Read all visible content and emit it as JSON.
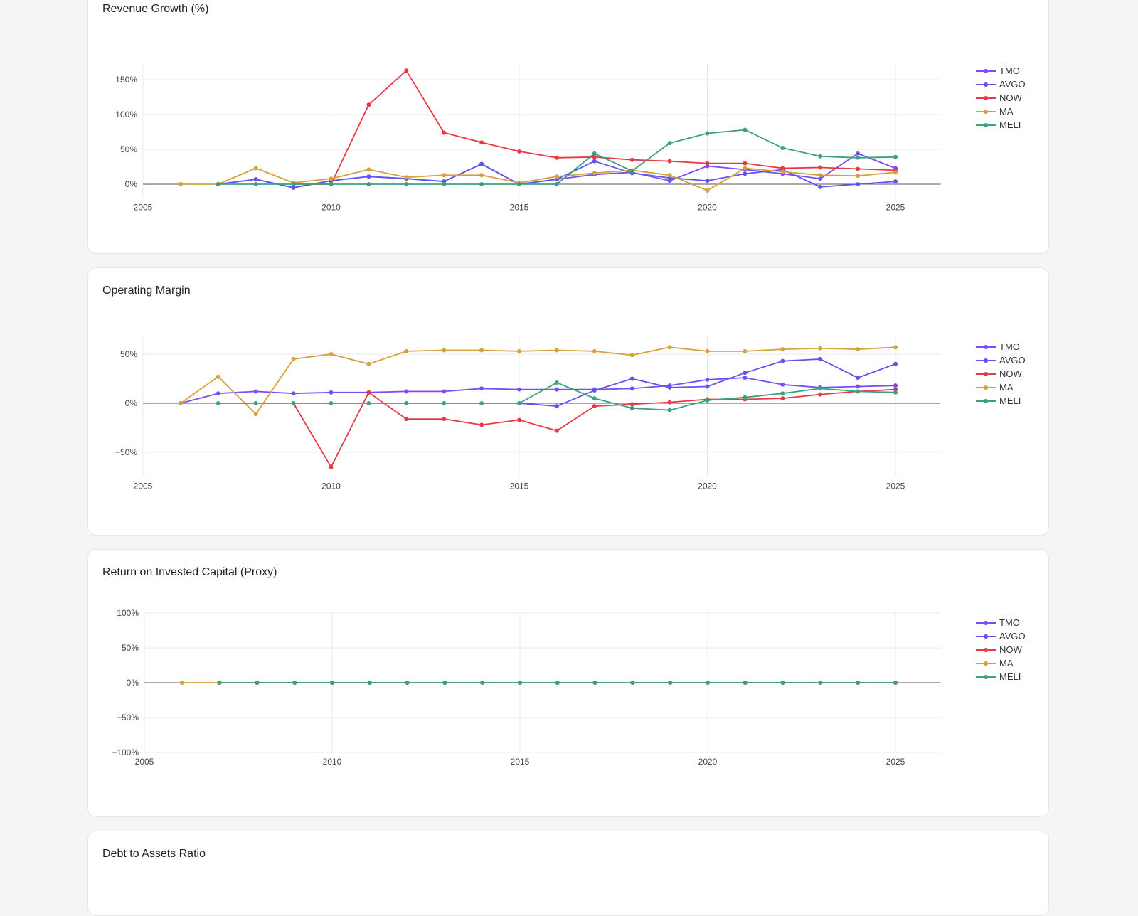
{
  "colors": {
    "TMO": "#7a4cf5",
    "AVGO": "#6352f0",
    "NOW": "#e63946",
    "MA": "#d4a23a",
    "MELI": "#3aa17e",
    "zero_line": "#555555",
    "grid": "#e8e8e8"
  },
  "chart_data": [
    {
      "type": "line",
      "title": "Revenue Growth (%)",
      "xlabel": "",
      "ylabel": "",
      "xlim": [
        2005,
        2026.2
      ],
      "ylim": [
        -20,
        175
      ],
      "xticks": [
        2005,
        2010,
        2015,
        2020,
        2025
      ],
      "xtick_labels": [
        "2005",
        "2010",
        "2015",
        "2020",
        "2025"
      ],
      "yticks": [
        0,
        50,
        100,
        150
      ],
      "ytick_labels": [
        "0%",
        "50%",
        "100%",
        "150%"
      ],
      "grid": true,
      "legend": "right",
      "series": [
        {
          "name": "TMO",
          "x": [
            2007,
            2008,
            2009,
            2010,
            2011,
            2012,
            2013,
            2014,
            2015,
            2016,
            2017,
            2018,
            2019,
            2020,
            2021,
            2022,
            2023,
            2024,
            2025
          ],
          "values": [
            0,
            7,
            -5,
            5,
            11,
            8,
            4,
            29,
            0,
            7,
            14,
            17,
            5,
            26,
            21,
            15,
            8,
            44,
            23
          ]
        },
        {
          "name": "AVGO",
          "x": [
            2007,
            2008,
            2009,
            2010,
            2011,
            2012,
            2013,
            2014,
            2015,
            2016,
            2017,
            2018,
            2019,
            2020,
            2021,
            2022,
            2023,
            2024,
            2025
          ],
          "values": [
            0,
            7,
            -5,
            5,
            11,
            8,
            4,
            29,
            0,
            7,
            33,
            16,
            9,
            5,
            15,
            21,
            -4,
            0,
            4
          ]
        },
        {
          "name": "NOW",
          "x": [
            2009,
            2010,
            2011,
            2012,
            2013,
            2014,
            2015,
            2016,
            2017,
            2018,
            2019,
            2020,
            2021,
            2022,
            2023,
            2024,
            2025
          ],
          "values": [
            0,
            0,
            114,
            163,
            74,
            60,
            47,
            38,
            39,
            35,
            33,
            30,
            30,
            23,
            24,
            22,
            20
          ]
        },
        {
          "name": "MA",
          "x": [
            2006,
            2007,
            2008,
            2009,
            2010,
            2011,
            2012,
            2013,
            2014,
            2015,
            2016,
            2017,
            2018,
            2019,
            2020,
            2021,
            2022,
            2023,
            2024,
            2025
          ],
          "values": [
            0,
            0,
            23,
            2,
            8,
            21,
            10,
            13,
            13,
            2,
            11,
            16,
            20,
            13,
            -9,
            23,
            18,
            13,
            12,
            17
          ]
        },
        {
          "name": "MELI",
          "x": [
            2007,
            2008,
            2009,
            2010,
            2011,
            2012,
            2013,
            2014,
            2015,
            2016,
            2017,
            2018,
            2019,
            2020,
            2021,
            2022,
            2023,
            2024,
            2025
          ],
          "values": [
            0,
            0,
            0,
            0,
            0,
            0,
            0,
            0,
            0,
            0,
            44,
            19,
            59,
            73,
            78,
            52,
            40,
            38,
            39
          ]
        }
      ]
    },
    {
      "type": "line",
      "title": "Operating Margin",
      "xlabel": "",
      "ylabel": "",
      "xlim": [
        2005,
        2026.2
      ],
      "ylim": [
        -75,
        68
      ],
      "xticks": [
        2005,
        2010,
        2015,
        2020,
        2025
      ],
      "xtick_labels": [
        "2005",
        "2010",
        "2015",
        "2020",
        "2025"
      ],
      "yticks": [
        -50,
        0,
        50
      ],
      "ytick_labels": [
        "−50%",
        "0%",
        "50%"
      ],
      "grid": true,
      "legend": "right",
      "series": [
        {
          "name": "TMO",
          "x": [
            2006,
            2007,
            2008,
            2009,
            2010,
            2011,
            2012,
            2013,
            2014,
            2015,
            2016,
            2017,
            2018,
            2019,
            2020,
            2021,
            2022,
            2023,
            2024,
            2025
          ],
          "values": [
            0,
            10,
            12,
            10,
            11,
            11,
            12,
            12,
            15,
            14,
            14,
            14,
            15,
            18,
            24,
            26,
            19,
            16,
            17,
            18
          ]
        },
        {
          "name": "AVGO",
          "x": [
            2015,
            2016,
            2017,
            2018,
            2019,
            2020,
            2021,
            2022,
            2023,
            2024,
            2025
          ],
          "values": [
            0,
            -3,
            13,
            25,
            16,
            17,
            31,
            43,
            45,
            26,
            40
          ]
        },
        {
          "name": "NOW",
          "x": [
            2009,
            2010,
            2011,
            2012,
            2013,
            2014,
            2015,
            2016,
            2017,
            2018,
            2019,
            2020,
            2021,
            2022,
            2023,
            2024,
            2025
          ],
          "values": [
            0,
            -65,
            11,
            -16,
            -16,
            -22,
            -17,
            -28,
            -3,
            -1,
            1,
            4,
            4,
            5,
            9,
            12,
            14
          ]
        },
        {
          "name": "MA",
          "x": [
            2006,
            2007,
            2008,
            2009,
            2010,
            2011,
            2012,
            2013,
            2014,
            2015,
            2016,
            2017,
            2018,
            2019,
            2020,
            2021,
            2022,
            2023,
            2024,
            2025
          ],
          "values": [
            0,
            27,
            -11,
            45,
            50,
            40,
            53,
            54,
            54,
            53,
            54,
            53,
            49,
            57,
            53,
            53,
            55,
            56,
            55,
            57
          ]
        },
        {
          "name": "MELI",
          "x": [
            2007,
            2008,
            2009,
            2010,
            2011,
            2012,
            2013,
            2014,
            2015,
            2016,
            2017,
            2018,
            2019,
            2020,
            2021,
            2022,
            2023,
            2024,
            2025
          ],
          "values": [
            0,
            0,
            0,
            0,
            0,
            0,
            0,
            0,
            0,
            21,
            5,
            -5,
            -7,
            3,
            6,
            10,
            15,
            12,
            11
          ]
        }
      ]
    },
    {
      "type": "line",
      "title": "Return on Invested Capital (Proxy)",
      "xlabel": "",
      "ylabel": "",
      "xlim": [
        2005,
        2026.2
      ],
      "ylim": [
        -100,
        100
      ],
      "xticks": [
        2005,
        2010,
        2015,
        2020,
        2025
      ],
      "xtick_labels": [
        "2005",
        "2010",
        "2015",
        "2020",
        "2025"
      ],
      "yticks": [
        -100,
        -50,
        0,
        50,
        100
      ],
      "ytick_labels": [
        "−100%",
        "−50%",
        "0%",
        "50%",
        "100%"
      ],
      "grid": true,
      "legend": "right",
      "series": [
        {
          "name": "TMO",
          "x": [
            2007,
            2008,
            2009,
            2010,
            2011,
            2012,
            2013,
            2014,
            2015,
            2016,
            2017,
            2018,
            2019,
            2020,
            2021,
            2022,
            2023,
            2024,
            2025
          ],
          "values": [
            0,
            0,
            0,
            0,
            0,
            0,
            0,
            0,
            0,
            0,
            0,
            0,
            0,
            0,
            0,
            0,
            0,
            0,
            0
          ]
        },
        {
          "name": "AVGO",
          "x": [
            2007,
            2008,
            2009,
            2010,
            2011,
            2012,
            2013,
            2014,
            2015,
            2016,
            2017,
            2018,
            2019,
            2020,
            2021,
            2022,
            2023,
            2024,
            2025
          ],
          "values": [
            0,
            0,
            0,
            0,
            0,
            0,
            0,
            0,
            0,
            0,
            0,
            0,
            0,
            0,
            0,
            0,
            0,
            0,
            0
          ]
        },
        {
          "name": "NOW",
          "x": [
            2007,
            2008,
            2009,
            2010,
            2011,
            2012,
            2013,
            2014,
            2015,
            2016,
            2017,
            2018,
            2019,
            2020,
            2021,
            2022,
            2023,
            2024,
            2025
          ],
          "values": [
            0,
            0,
            0,
            0,
            0,
            0,
            0,
            0,
            0,
            0,
            0,
            0,
            0,
            0,
            0,
            0,
            0,
            0,
            0
          ]
        },
        {
          "name": "MA",
          "x": [
            2006,
            2007,
            2008,
            2009,
            2010,
            2011,
            2012,
            2013,
            2014,
            2015,
            2016,
            2017,
            2018,
            2019,
            2020,
            2021,
            2022,
            2023,
            2024,
            2025
          ],
          "values": [
            0,
            0,
            0,
            0,
            0,
            0,
            0,
            0,
            0,
            0,
            0,
            0,
            0,
            0,
            0,
            0,
            0,
            0,
            0,
            0
          ]
        },
        {
          "name": "MELI",
          "x": [
            2007,
            2008,
            2009,
            2010,
            2011,
            2012,
            2013,
            2014,
            2015,
            2016,
            2017,
            2018,
            2019,
            2020,
            2021,
            2022,
            2023,
            2024,
            2025
          ],
          "values": [
            0,
            0,
            0,
            0,
            0,
            0,
            0,
            0,
            0,
            0,
            0,
            0,
            0,
            0,
            0,
            0,
            0,
            0,
            0
          ]
        }
      ]
    },
    {
      "type": "line",
      "title": "Debt to Assets Ratio",
      "series": []
    }
  ]
}
